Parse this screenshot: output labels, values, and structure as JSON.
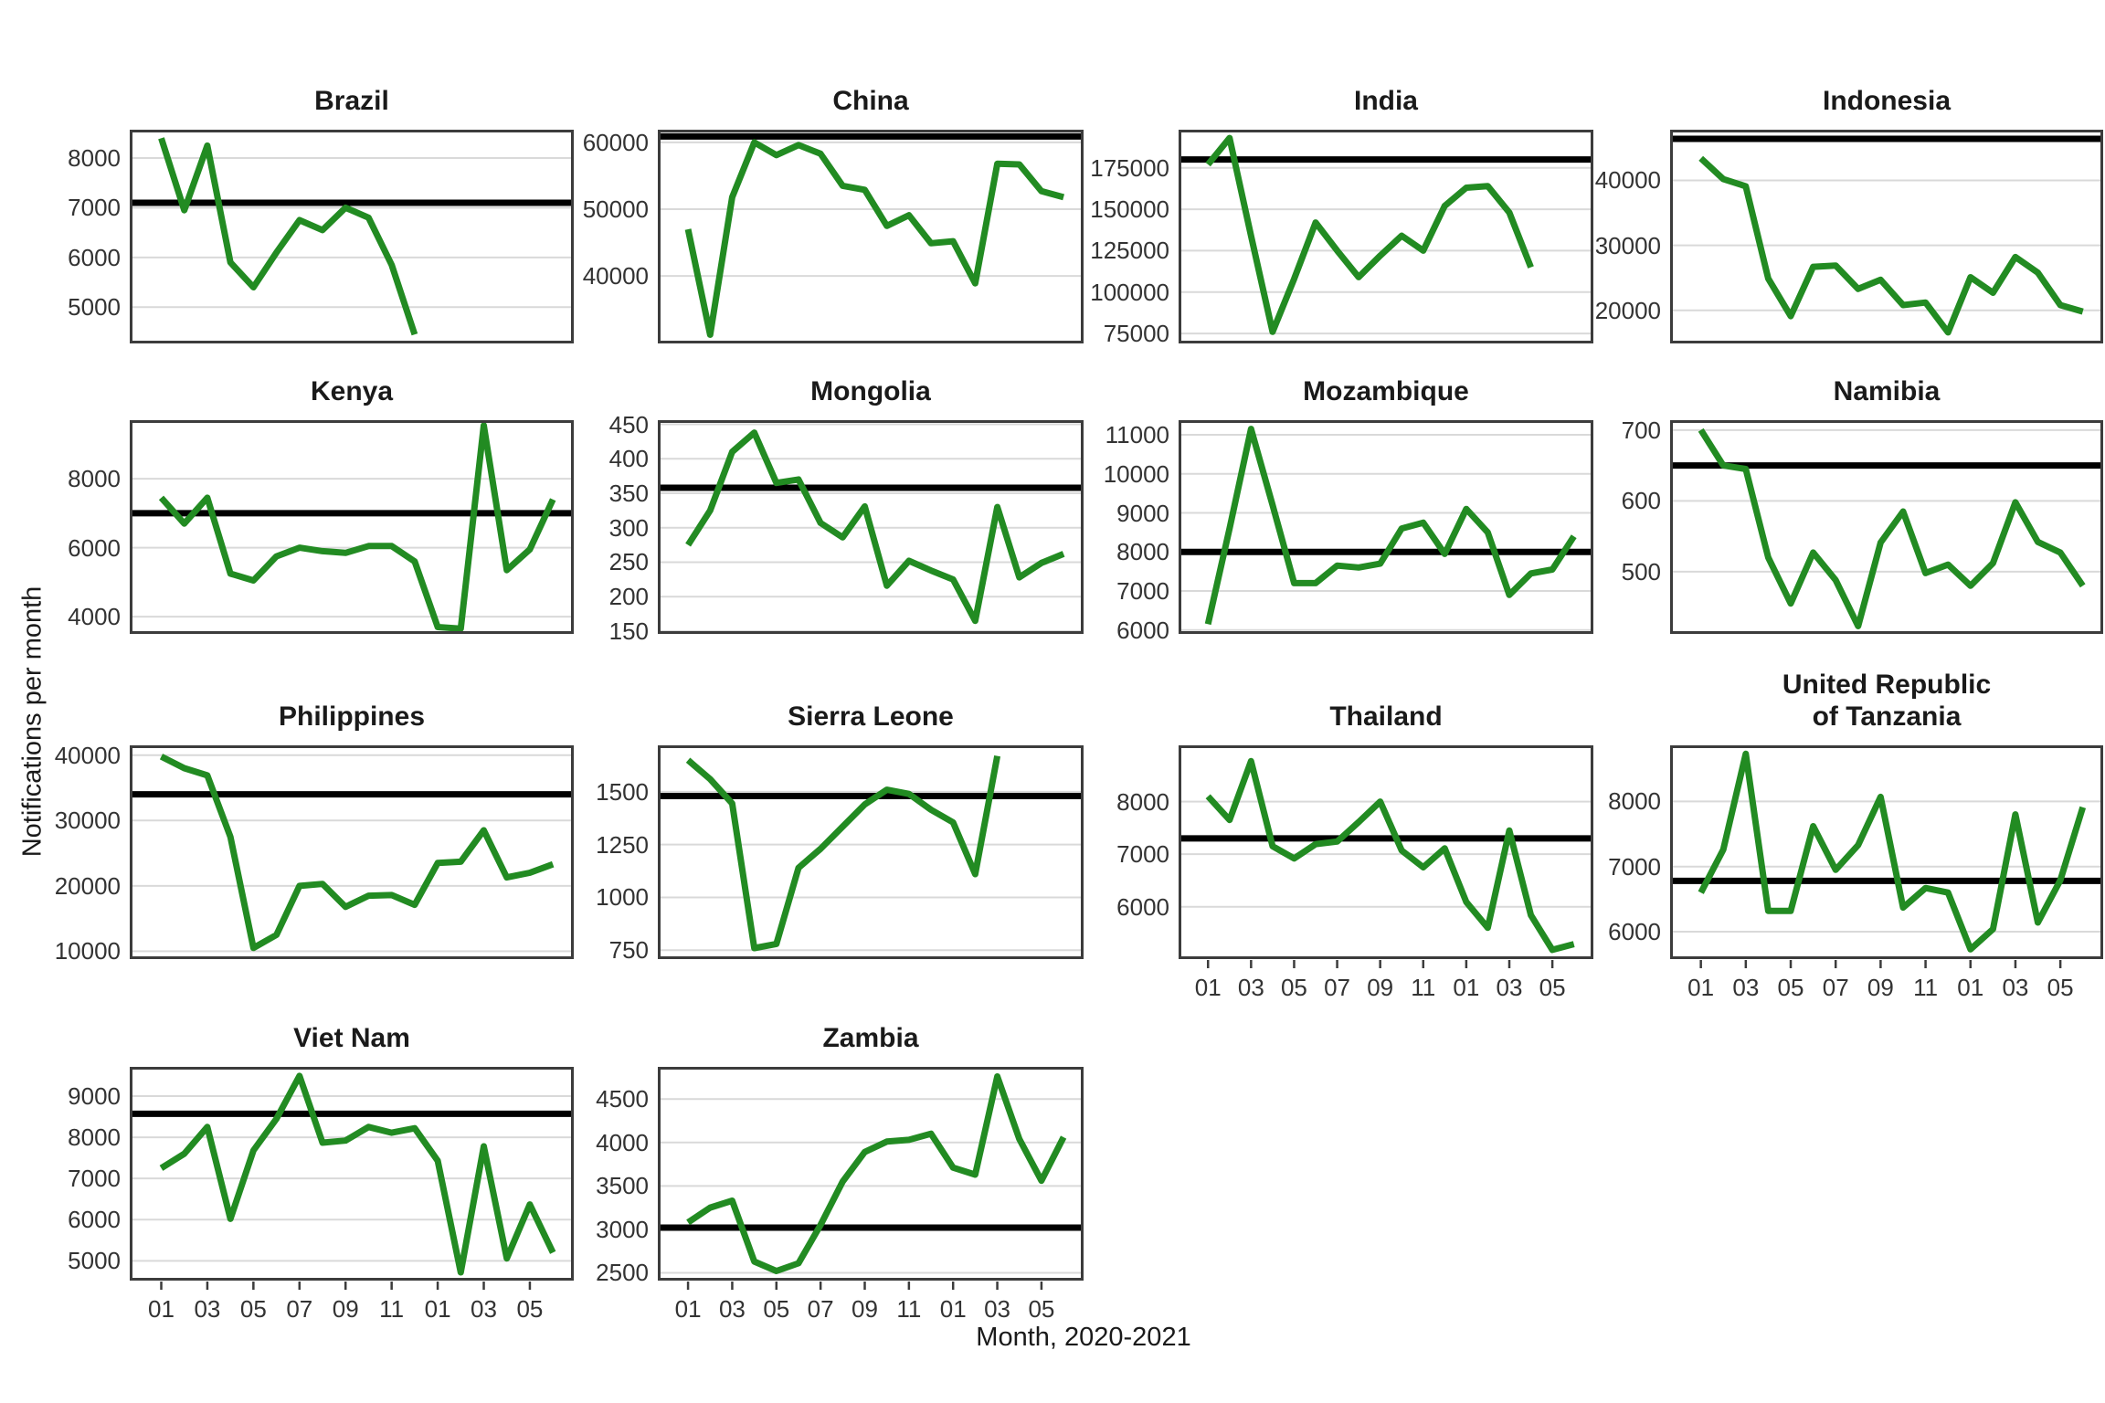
{
  "figure": {
    "y_axis_title": "Notifications per month",
    "x_axis_title": "Month, 2020-2021",
    "x_tick_labels": [
      "01",
      "03",
      "05",
      "07",
      "09",
      "11",
      "01",
      "03",
      "05"
    ],
    "x_tick_months": [
      1,
      3,
      5,
      7,
      9,
      11,
      13,
      15,
      17
    ],
    "n_months": 18,
    "line_color": "#228B22",
    "reference_line_color": "#000000",
    "gridline_color": "#d9d9d9",
    "panel_border_color": "#3c3c3c",
    "tick_text_color": "#333333"
  },
  "chart_data": [
    {
      "type": "line",
      "title_lines": [
        "Brazil"
      ],
      "values": [
        8400,
        6950,
        8250,
        5900,
        5400,
        6100,
        6750,
        6550,
        7000,
        6800,
        5850,
        4450
      ],
      "baseline": 7100,
      "ylim": [
        4270,
        8570
      ],
      "yticks": [
        5000,
        6000,
        7000,
        8000
      ],
      "show_x_axis": false
    },
    {
      "type": "line",
      "title_lines": [
        "China"
      ],
      "values": [
        47000,
        31200,
        51800,
        60000,
        58100,
        59600,
        58300,
        53500,
        52900,
        47500,
        49100,
        44900,
        45200,
        38900,
        56800,
        56700,
        52700,
        51800
      ],
      "baseline": 60900,
      "ylim": [
        29900,
        61900
      ],
      "yticks": [
        40000,
        50000,
        60000
      ],
      "show_x_axis": false
    },
    {
      "type": "line",
      "title_lines": [
        "India"
      ],
      "values": [
        177000,
        193000,
        134000,
        76000,
        108000,
        142000,
        125000,
        109000,
        122000,
        134000,
        125000,
        152000,
        163000,
        164000,
        148000,
        115000
      ],
      "baseline": 180000,
      "ylim": [
        69000,
        198000
      ],
      "yticks": [
        75000,
        100000,
        125000,
        150000,
        175000
      ],
      "show_x_axis": false
    },
    {
      "type": "line",
      "title_lines": [
        "Indonesia"
      ],
      "values": [
        43400,
        40200,
        39100,
        24900,
        19100,
        26700,
        26900,
        23300,
        24700,
        20800,
        21200,
        16600,
        25100,
        22700,
        28200,
        25800,
        20800,
        19800
      ],
      "baseline": 46400,
      "ylim": [
        14900,
        47800
      ],
      "yticks": [
        20000,
        30000,
        40000
      ],
      "show_x_axis": false
    },
    {
      "type": "line",
      "title_lines": [
        "Kenya"
      ],
      "values": [
        7450,
        6700,
        7450,
        5250,
        5050,
        5750,
        6000,
        5900,
        5850,
        6050,
        6050,
        5600,
        3700,
        3650,
        9550,
        5350,
        5950,
        7400
      ],
      "baseline": 7000,
      "ylim": [
        3500,
        9700
      ],
      "yticks": [
        4000,
        6000,
        8000
      ],
      "show_x_axis": false
    },
    {
      "type": "line",
      "title_lines": [
        "Mongolia"
      ],
      "values": [
        275,
        325,
        410,
        438,
        365,
        370,
        307,
        286,
        331,
        216,
        252,
        238,
        225,
        165,
        330,
        228,
        249,
        262
      ],
      "baseline": 358,
      "ylim": [
        146,
        456
      ],
      "yticks": [
        150,
        200,
        250,
        300,
        350,
        400,
        450
      ],
      "show_x_axis": false
    },
    {
      "type": "line",
      "title_lines": [
        "Mozambique"
      ],
      "values": [
        6150,
        8600,
        11150,
        9200,
        7200,
        7200,
        7650,
        7600,
        7700,
        8600,
        8750,
        7950,
        9100,
        8500,
        6900,
        7450,
        7550,
        8400
      ],
      "baseline": 8000,
      "ylim": [
        5900,
        11375
      ],
      "yticks": [
        6000,
        7000,
        8000,
        9000,
        10000,
        11000
      ],
      "show_x_axis": false
    },
    {
      "type": "line",
      "title_lines": [
        "Namibia"
      ],
      "values": [
        700,
        650,
        645,
        520,
        455,
        527,
        488,
        423,
        541,
        585,
        498,
        510,
        480,
        512,
        598,
        542,
        527,
        480
      ],
      "baseline": 650,
      "ylim": [
        412,
        714
      ],
      "yticks": [
        500,
        600,
        700
      ],
      "show_x_axis": false
    },
    {
      "type": "line",
      "title_lines": [
        "Philippines"
      ],
      "values": [
        39800,
        38000,
        36900,
        27500,
        10500,
        12500,
        20000,
        20300,
        16800,
        18500,
        18600,
        17100,
        23500,
        23700,
        28500,
        21300,
        22000,
        23300
      ],
      "baseline": 34000,
      "ylim": [
        8800,
        41500
      ],
      "yticks": [
        10000,
        20000,
        30000,
        40000
      ],
      "show_x_axis": false
    },
    {
      "type": "line",
      "title_lines": [
        "Sierra Leone"
      ],
      "values": [
        1650,
        1560,
        1445,
        760,
        780,
        1140,
        1230,
        1335,
        1440,
        1510,
        1490,
        1415,
        1355,
        1110,
        1670
      ],
      "baseline": 1480,
      "ylim": [
        708,
        1720
      ],
      "yticks": [
        750,
        1000,
        1250,
        1500
      ],
      "show_x_axis": false
    },
    {
      "type": "line",
      "title_lines": [
        "Thailand"
      ],
      "values": [
        8100,
        7650,
        8770,
        7150,
        6920,
        7190,
        7240,
        7610,
        8000,
        7070,
        6750,
        7110,
        6090,
        5600,
        7450,
        5840,
        5180,
        5290
      ],
      "baseline": 7300,
      "ylim": [
        5005,
        9070
      ],
      "yticks": [
        6000,
        7000,
        8000
      ],
      "show_x_axis": true
    },
    {
      "type": "line",
      "title_lines": [
        "United Republic",
        "of Tanzania"
      ],
      "values": [
        6600,
        7260,
        8730,
        6320,
        6320,
        7620,
        6950,
        7330,
        8070,
        6370,
        6670,
        6600,
        5730,
        6040,
        7800,
        6140,
        6790,
        7910
      ],
      "baseline": 6780,
      "ylim": [
        5580,
        8860
      ],
      "yticks": [
        6000,
        7000,
        8000
      ],
      "show_x_axis": true
    },
    {
      "type": "line",
      "title_lines": [
        "Viet Nam"
      ],
      "values": [
        7250,
        7600,
        8250,
        6020,
        7680,
        8450,
        9490,
        7870,
        7920,
        8250,
        8110,
        8220,
        7430,
        4720,
        7780,
        5060,
        6370,
        5200
      ],
      "baseline": 8570,
      "ylim": [
        4520,
        9710
      ],
      "yticks": [
        5000,
        6000,
        7000,
        8000,
        9000
      ],
      "show_x_axis": true
    },
    {
      "type": "line",
      "title_lines": [
        "Zambia"
      ],
      "values": [
        3080,
        3250,
        3330,
        2630,
        2520,
        2610,
        3050,
        3550,
        3890,
        4010,
        4030,
        4100,
        3710,
        3630,
        4760,
        4040,
        3560,
        4060
      ],
      "baseline": 3020,
      "ylim": [
        2410,
        4870
      ],
      "yticks": [
        2500,
        3000,
        3500,
        4000,
        4500
      ],
      "show_x_axis": true
    }
  ]
}
